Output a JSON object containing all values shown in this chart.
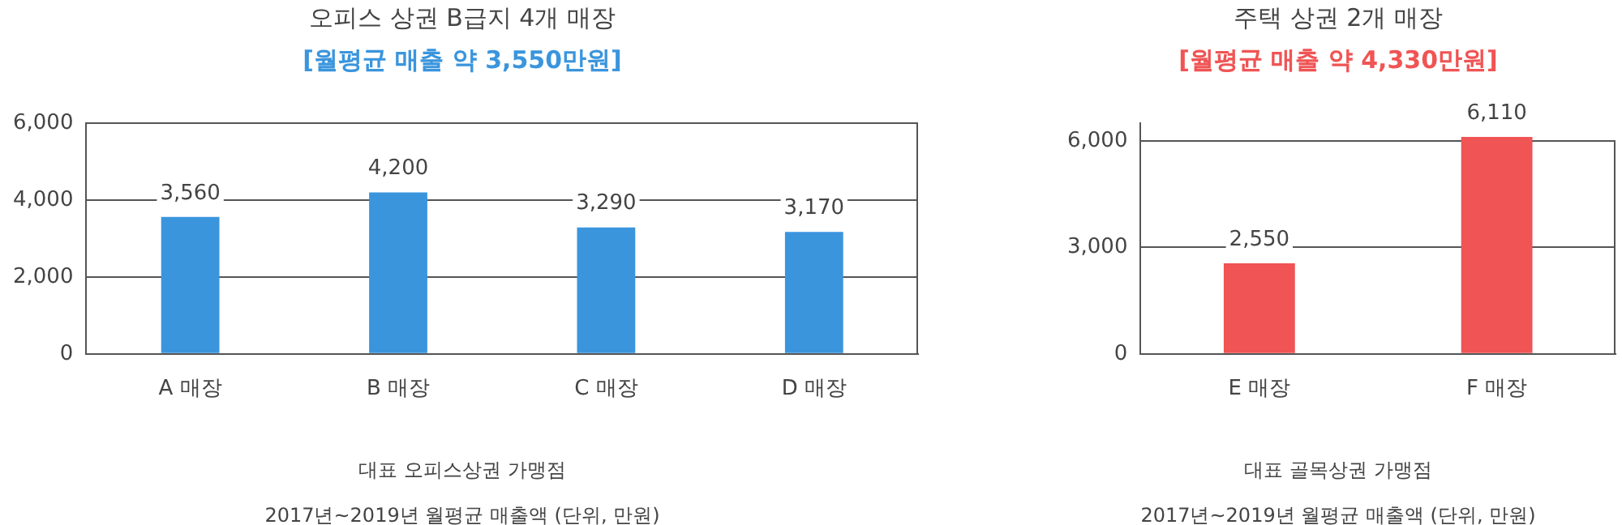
{
  "chart_data": [
    {
      "type": "bar",
      "title": "오피스 상권 B급지 4개 매장",
      "subtitle": "[월평균 매출 약 3,550만원]",
      "categories": [
        "A 매장",
        "B 매장",
        "C 매장",
        "D 매장"
      ],
      "series": [
        {
          "color": "#3a95dd",
          "values": [
            3560,
            4200,
            3290,
            3170
          ],
          "value_labels": [
            "3,560",
            "4,200",
            "3,290",
            "3,170"
          ]
        }
      ],
      "ylim": [
        0,
        6000
      ],
      "yticks": [
        {
          "value": 0,
          "label": "0"
        },
        {
          "value": 2000,
          "label": "2,000"
        },
        {
          "value": 4000,
          "label": "4,000"
        },
        {
          "value": 6000,
          "label": "6,000"
        }
      ],
      "grid": "y",
      "legend": false,
      "annotations": [
        "대표 오피스상권 가맹점",
        "2017년~2019년 월평균 매출액 (단위, 만원)"
      ]
    },
    {
      "type": "bar",
      "title": "주택 상권 2개 매장",
      "subtitle": "[월평균 매출 약 4,330만원]",
      "categories": [
        "E 매장",
        "F 매장"
      ],
      "series": [
        {
          "color": "#f05454",
          "values": [
            2550,
            6110
          ],
          "value_labels": [
            "2,550",
            "6,110"
          ]
        }
      ],
      "ylim": [
        0,
        6500
      ],
      "yticks": [
        {
          "value": 0,
          "label": "0"
        },
        {
          "value": 3000,
          "label": "3,000"
        },
        {
          "value": 6000,
          "label": "6,000"
        }
      ],
      "grid": "y",
      "legend": false,
      "annotations": [
        "대표 골목상권 가맹점",
        "2017년~2019년 월평균 매출액 (단위, 만원)"
      ]
    }
  ]
}
